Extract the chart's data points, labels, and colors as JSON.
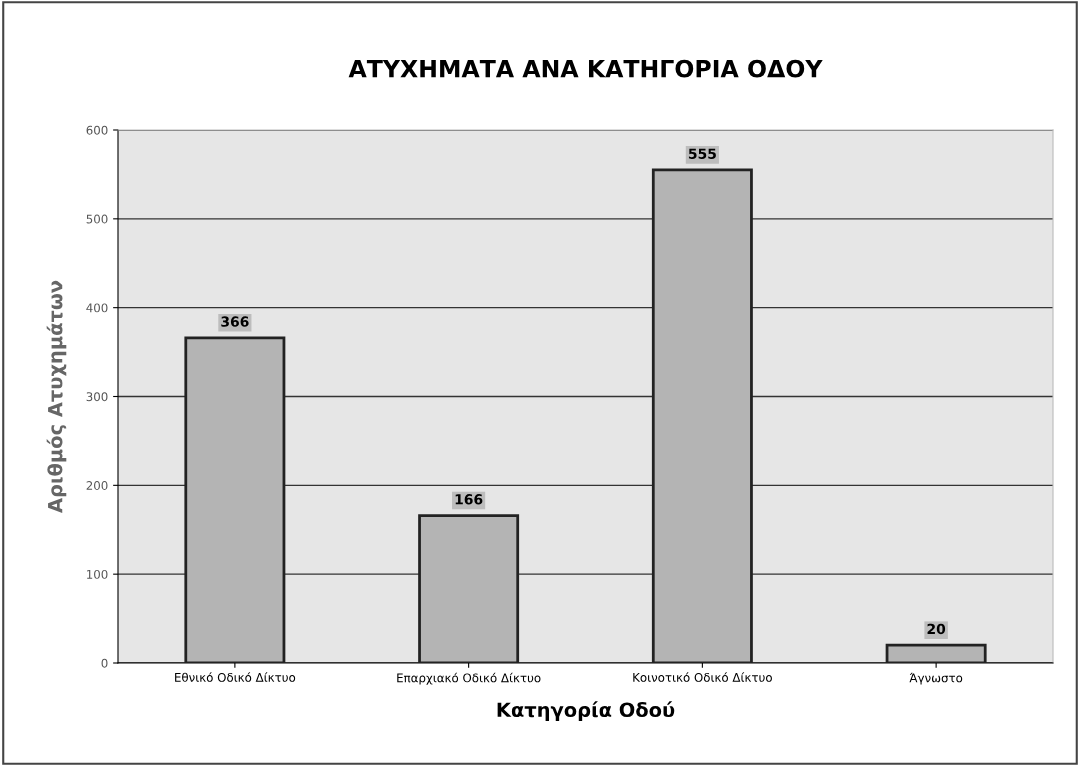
{
  "chart_data": {
    "type": "bar",
    "title": "ΑΤΥΧΗΜΑΤΑ ΑΝΑ ΚΑΤΗΓΟΡΙΑ ΟΔΟΥ",
    "xlabel": "Κατηγορία Οδού",
    "ylabel": "Αριθμός Ατυχημάτων",
    "categories": [
      "Εθνικό Οδικό Δίκτυο",
      "Επαρχιακό Οδικό Δίκτυο",
      "Κοινοτικό Οδικό Δίκτυο",
      "Άγνωστο"
    ],
    "values": [
      366,
      166,
      555,
      20
    ],
    "color": "#b4b4b4",
    "ylim": [
      0,
      600
    ],
    "yticks": [
      0,
      100,
      200,
      300,
      400,
      500,
      600
    ],
    "grid": "y",
    "data_labels": true,
    "legend": false
  }
}
